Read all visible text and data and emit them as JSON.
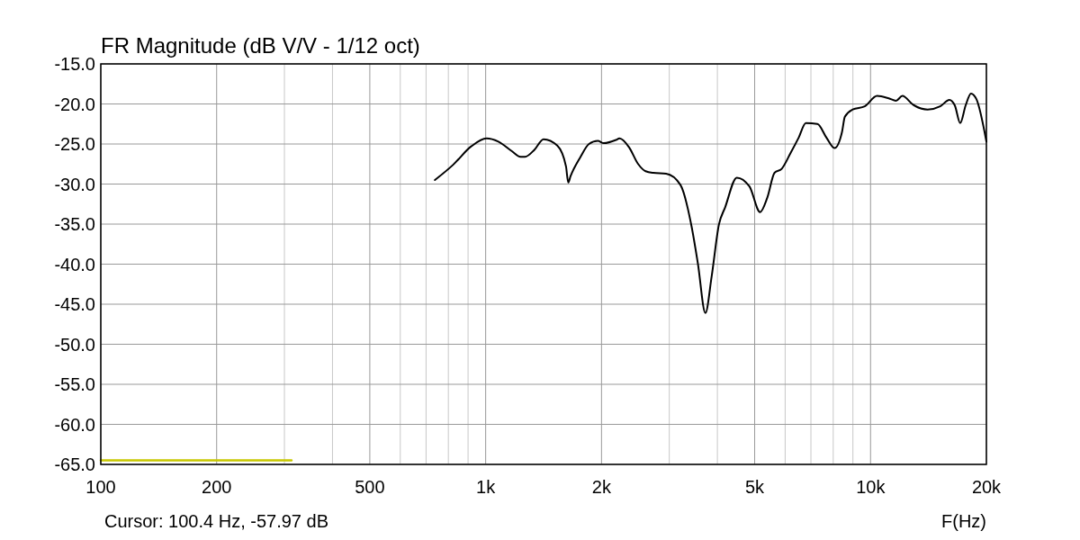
{
  "chart_data": {
    "type": "line",
    "title": "FR Magnitude (dB V/V - 1/12 oct)",
    "xlabel": "F(Hz)",
    "log": "x",
    "grid": true,
    "marker": "none",
    "line_style": "solid",
    "xlim": [
      100,
      20000
    ],
    "xticks": [
      100,
      {
        "value": 200,
        "label": "200"
      },
      {
        "value": 300,
        "label": null
      },
      {
        "value": 400,
        "label": null
      },
      500,
      {
        "value": 600,
        "label": null
      },
      {
        "value": 700,
        "label": null
      },
      {
        "value": 800,
        "label": null
      },
      {
        "value": 900,
        "label": null
      },
      {
        "value": 1000,
        "label": "1k"
      },
      {
        "value": 2000,
        "label": "2k"
      },
      {
        "value": 3000,
        "label": null
      },
      {
        "value": 4000,
        "label": null
      },
      {
        "value": 5000,
        "label": "5k"
      },
      {
        "value": 6000,
        "label": null
      },
      {
        "value": 7000,
        "label": null
      },
      {
        "value": 8000,
        "label": null
      },
      {
        "value": 9000,
        "label": null
      },
      {
        "value": 10000,
        "label": "10k"
      },
      {
        "value": 20000,
        "label": "20k"
      }
    ],
    "ylim": [
      -65,
      -15
    ],
    "yticks": [
      {
        "value": -65,
        "label": "-65.0"
      },
      {
        "value": -60,
        "label": "-60.0"
      },
      {
        "value": -55,
        "label": "-55.0"
      },
      {
        "value": -50,
        "label": "-50.0"
      },
      {
        "value": -45,
        "label": "-45.0"
      },
      {
        "value": -40,
        "label": "-40.0"
      },
      {
        "value": -35,
        "label": "-35.0"
      },
      {
        "value": -30,
        "label": "-30.0"
      },
      {
        "value": -25,
        "label": "-25.0"
      },
      {
        "value": -20,
        "label": "-20.0"
      },
      {
        "value": -15,
        "label": "-15.0"
      }
    ],
    "annotations": [
      "Cursor: 100.4 Hz, -57.97 dB"
    ],
    "series": [
      {
        "color": "#000000",
        "x": [
          738,
          823,
          917,
          1005,
          1079,
          1170,
          1232,
          1265,
          1340,
          1414,
          1535,
          1617,
          1639,
          1662,
          1759,
          1855,
          1956,
          2027,
          2180,
          2227,
          2358,
          2490,
          2604,
          2726,
          2943,
          3206,
          3431,
          3559,
          3723,
          3866,
          4035,
          4190,
          4493,
          4846,
          5165,
          5392,
          5630,
          5877,
          6202,
          6507,
          6790,
          7279,
          7680,
          8060,
          8430,
          8575,
          8985,
          9660,
          10400,
          11150,
          11650,
          12100,
          12900,
          14070,
          15170,
          16030,
          16560,
          17100,
          17660,
          18240,
          18840,
          20000
        ],
        "values": [
          -29.5,
          -27.6,
          -25.3,
          -24.3,
          -24.7,
          -25.9,
          -26.6,
          -26.6,
          -25.7,
          -24.4,
          -25.2,
          -27.8,
          -29.8,
          -29.0,
          -26.7,
          -25.0,
          -24.6,
          -24.9,
          -24.5,
          -24.3,
          -25.4,
          -27.5,
          -28.4,
          -28.6,
          -28.7,
          -30.1,
          -35.4,
          -39.9,
          -46.1,
          -41.5,
          -35.1,
          -32.9,
          -29.2,
          -30.3,
          -33.5,
          -31.7,
          -28.6,
          -28.1,
          -26.1,
          -24.2,
          -22.4,
          -22.5,
          -24.2,
          -25.5,
          -23.5,
          -21.6,
          -20.7,
          -20.3,
          -19.0,
          -19.3,
          -19.6,
          -19.0,
          -20.1,
          -20.7,
          -20.3,
          -19.5,
          -20.2,
          -22.4,
          -20.2,
          -18.7,
          -19.4,
          -24.7
        ]
      },
      {
        "color": "#c8c800",
        "x": [
          100,
          313
        ],
        "values": [
          -64.5,
          -64.5
        ]
      }
    ]
  }
}
